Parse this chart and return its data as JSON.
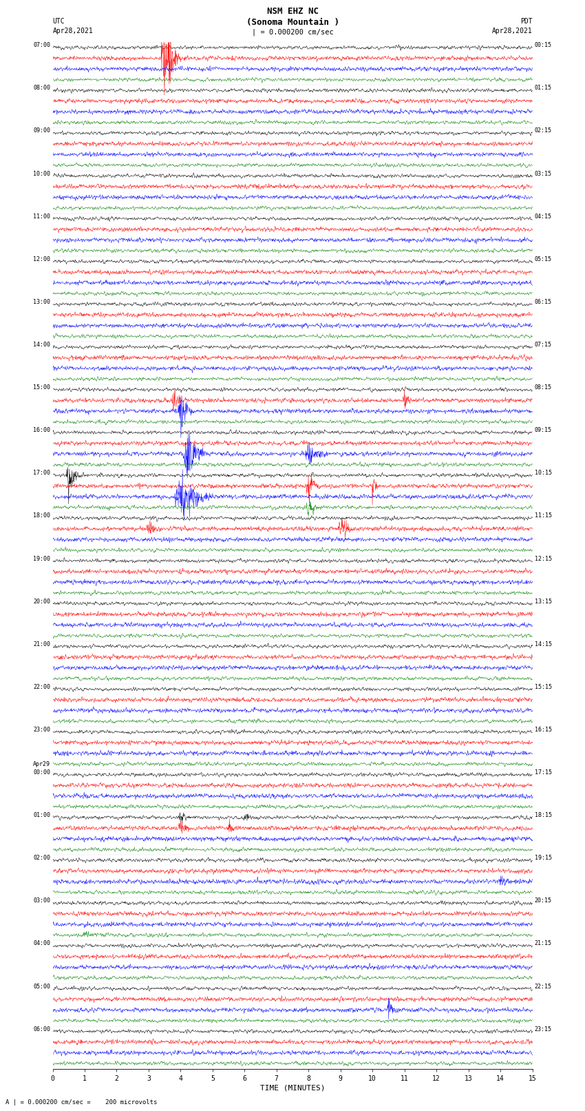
{
  "title_line1": "NSM EHZ NC",
  "title_line2": "(Sonoma Mountain )",
  "title_line3": "| = 0.000200 cm/sec",
  "left_header": "UTC",
  "right_header": "PDT",
  "left_date": "Apr28,2021",
  "right_date": "Apr28,2021",
  "xlabel": "TIME (MINUTES)",
  "bottom_note": "A | = 0.000200 cm/sec =    200 microvolts",
  "background_color": "#ffffff",
  "trace_colors": [
    "black",
    "red",
    "blue",
    "green"
  ],
  "xlim": [
    0,
    15
  ],
  "fig_width": 8.5,
  "fig_height": 16.13,
  "left_times_utc": [
    "07:00",
    "",
    "",
    "",
    "08:00",
    "",
    "",
    "",
    "09:00",
    "",
    "",
    "",
    "10:00",
    "",
    "",
    "",
    "11:00",
    "",
    "",
    "",
    "12:00",
    "",
    "",
    "",
    "13:00",
    "",
    "",
    "",
    "14:00",
    "",
    "",
    "",
    "15:00",
    "",
    "",
    "",
    "16:00",
    "",
    "",
    "",
    "17:00",
    "",
    "",
    "",
    "18:00",
    "",
    "",
    "",
    "19:00",
    "",
    "",
    "",
    "20:00",
    "",
    "",
    "",
    "21:00",
    "",
    "",
    "",
    "22:00",
    "",
    "",
    "",
    "23:00",
    "",
    "",
    "",
    "Apr29\n00:00",
    "",
    "",
    "",
    "01:00",
    "",
    "",
    "",
    "02:00",
    "",
    "",
    "",
    "03:00",
    "",
    "",
    "",
    "04:00",
    "",
    "",
    "",
    "05:00",
    "",
    "",
    "",
    "06:00",
    "",
    "",
    ""
  ],
  "right_times_pdt": [
    "00:15",
    "",
    "",
    "",
    "01:15",
    "",
    "",
    "",
    "02:15",
    "",
    "",
    "",
    "03:15",
    "",
    "",
    "",
    "04:15",
    "",
    "",
    "",
    "05:15",
    "",
    "",
    "",
    "06:15",
    "",
    "",
    "",
    "07:15",
    "",
    "",
    "",
    "08:15",
    "",
    "",
    "",
    "09:15",
    "",
    "",
    "",
    "10:15",
    "",
    "",
    "",
    "11:15",
    "",
    "",
    "",
    "12:15",
    "",
    "",
    "",
    "13:15",
    "",
    "",
    "",
    "14:15",
    "",
    "",
    "",
    "15:15",
    "",
    "",
    "",
    "16:15",
    "",
    "",
    "",
    "17:15",
    "",
    "",
    "",
    "18:15",
    "",
    "",
    "",
    "19:15",
    "",
    "",
    "",
    "20:15",
    "",
    "",
    "",
    "21:15",
    "",
    "",
    "",
    "22:15",
    "",
    "",
    "",
    "23:15",
    "",
    "",
    ""
  ]
}
